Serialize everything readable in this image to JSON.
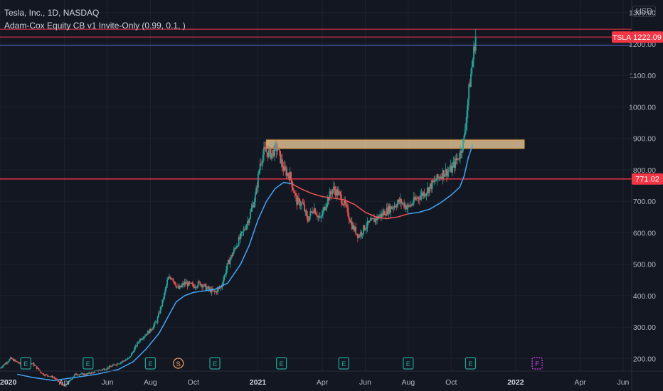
{
  "legend": {
    "line1": "Tesla, Inc., 1D, NASDAQ",
    "line2": "Adam-Cox Equity CB v1 Invite-Only (0.99, 0.1, )"
  },
  "currency": "USD",
  "colors": {
    "background": "#131722",
    "up": "#26a69a",
    "down": "#ef5350",
    "ma_fast": "#42a5f5",
    "ma_slow_red": "#ef5350",
    "hline": "#f23645",
    "zone_fill": "#f5d6a0",
    "zone_border": "#e8a04a",
    "earnings": "#26a69a",
    "split": "#f7a35c",
    "future": "#e040fb"
  },
  "chart_data": {
    "type": "candlestick",
    "symbol": "TSLA",
    "y_axis": {
      "ticks": [
        200,
        300,
        400,
        500,
        600,
        700,
        800,
        900,
        1000,
        1100,
        1200,
        1300
      ],
      "ylim": [
        160,
        1340
      ]
    },
    "x_axis": {
      "ticks": [
        {
          "label": "2020",
          "t": 0,
          "bold": true
        },
        {
          "label": "Apr",
          "t": 3
        },
        {
          "label": "Jun",
          "t": 5
        },
        {
          "label": "Aug",
          "t": 7
        },
        {
          "label": "Oct",
          "t": 9
        },
        {
          "label": "2021",
          "t": 12,
          "bold": true
        },
        {
          "label": "Apr",
          "t": 15
        },
        {
          "label": "Jun",
          "t": 17
        },
        {
          "label": "Aug",
          "t": 19
        },
        {
          "label": "Oct",
          "t": 21
        },
        {
          "label": "2022",
          "t": 24,
          "bold": true
        },
        {
          "label": "Apr",
          "t": 27
        },
        {
          "label": "Jun",
          "t": 29
        }
      ],
      "xlim": [
        0,
        29.4
      ]
    },
    "price_path": [
      [
        0.0,
        170
      ],
      [
        0.5,
        200
      ],
      [
        1.0,
        180
      ],
      [
        1.5,
        185
      ],
      [
        2.0,
        150
      ],
      [
        2.5,
        140
      ],
      [
        3.0,
        110
      ],
      [
        3.5,
        150
      ],
      [
        4.0,
        150
      ],
      [
        4.5,
        160
      ],
      [
        5.0,
        170
      ],
      [
        5.5,
        185
      ],
      [
        6.0,
        200
      ],
      [
        6.5,
        260
      ],
      [
        7.0,
        290
      ],
      [
        7.3,
        320
      ],
      [
        7.6,
        390
      ],
      [
        7.8,
        450
      ],
      [
        8.0,
        460
      ],
      [
        8.3,
        420
      ],
      [
        8.6,
        440
      ],
      [
        9.0,
        430
      ],
      [
        9.3,
        440
      ],
      [
        9.7,
        420
      ],
      [
        10.0,
        410
      ],
      [
        10.3,
        430
      ],
      [
        10.6,
        500
      ],
      [
        11.0,
        560
      ],
      [
        11.3,
        600
      ],
      [
        11.6,
        650
      ],
      [
        11.9,
        720
      ],
      [
        12.1,
        820
      ],
      [
        12.3,
        860
      ],
      [
        12.6,
        850
      ],
      [
        12.9,
        870
      ],
      [
        13.2,
        800
      ],
      [
        13.5,
        780
      ],
      [
        13.8,
        700
      ],
      [
        14.1,
        690
      ],
      [
        14.3,
        640
      ],
      [
        14.6,
        680
      ],
      [
        14.9,
        640
      ],
      [
        15.2,
        700
      ],
      [
        15.5,
        740
      ],
      [
        15.8,
        720
      ],
      [
        16.1,
        680
      ],
      [
        16.4,
        620
      ],
      [
        16.7,
        590
      ],
      [
        17.0,
        620
      ],
      [
        17.4,
        640
      ],
      [
        17.8,
        660
      ],
      [
        18.2,
        680
      ],
      [
        18.6,
        700
      ],
      [
        19.0,
        680
      ],
      [
        19.4,
        710
      ],
      [
        19.8,
        730
      ],
      [
        20.2,
        760
      ],
      [
        20.6,
        790
      ],
      [
        21.0,
        800
      ],
      [
        21.4,
        850
      ],
      [
        21.6,
        900
      ],
      [
        21.8,
        1040
      ],
      [
        22.0,
        1150
      ],
      [
        22.15,
        1230
      ]
    ],
    "ma_fast": [
      [
        0.8,
        150
      ],
      [
        1.5,
        140
      ],
      [
        2.5,
        130
      ],
      [
        3.5,
        140
      ],
      [
        4.5,
        150
      ],
      [
        5.5,
        165
      ],
      [
        6.2,
        190
      ],
      [
        6.8,
        230
      ],
      [
        7.4,
        280
      ],
      [
        7.8,
        330
      ],
      [
        8.2,
        380
      ],
      [
        8.6,
        400
      ],
      [
        9.0,
        410
      ],
      [
        9.5,
        415
      ],
      [
        10.0,
        420
      ],
      [
        10.6,
        440
      ],
      [
        11.2,
        500
      ],
      [
        11.6,
        560
      ],
      [
        12.0,
        640
      ],
      [
        12.4,
        700
      ],
      [
        12.8,
        740
      ],
      [
        13.2,
        760
      ],
      [
        13.6,
        755
      ]
    ],
    "ma_slow": [
      [
        13.6,
        755
      ],
      [
        14.0,
        740
      ],
      [
        14.5,
        725
      ],
      [
        15.0,
        715
      ],
      [
        15.5,
        710
      ],
      [
        16.0,
        705
      ],
      [
        16.5,
        690
      ],
      [
        17.0,
        665
      ],
      [
        17.5,
        650
      ],
      [
        18.0,
        645
      ],
      [
        18.5,
        650
      ],
      [
        19.0,
        660
      ]
    ],
    "ma_fast_2": [
      [
        19.0,
        660
      ],
      [
        19.5,
        665
      ],
      [
        20.0,
        675
      ],
      [
        20.5,
        695
      ],
      [
        21.0,
        720
      ],
      [
        21.4,
        745
      ],
      [
        21.6,
        780
      ],
      [
        21.8,
        840
      ],
      [
        22.0,
        880
      ]
    ],
    "horizontal_lines": [
      {
        "price": 771.02,
        "label": "771.02",
        "color": "#f23645"
      },
      {
        "price": 1247,
        "color": "#f23645"
      },
      {
        "price": 1222.09,
        "color": "#f23645"
      },
      {
        "price": 1196,
        "color": "#5d6bd8"
      }
    ],
    "zone": {
      "t_start": 12.4,
      "t_end": 24.4,
      "price_top": 895,
      "price_bottom": 868
    },
    "last_price": {
      "symbol": "TSLA",
      "value": "1222.09"
    },
    "events": [
      {
        "type": "E",
        "t": 1.2
      },
      {
        "type": "E",
        "t": 4.1
      },
      {
        "type": "E",
        "t": 7.0
      },
      {
        "type": "S",
        "t": 8.3
      },
      {
        "type": "E",
        "t": 10.0
      },
      {
        "type": "E",
        "t": 13.1
      },
      {
        "type": "E",
        "t": 16.0
      },
      {
        "type": "E",
        "t": 19.0
      },
      {
        "type": "E",
        "t": 21.9
      },
      {
        "type": "F",
        "t": 25.0
      }
    ]
  }
}
